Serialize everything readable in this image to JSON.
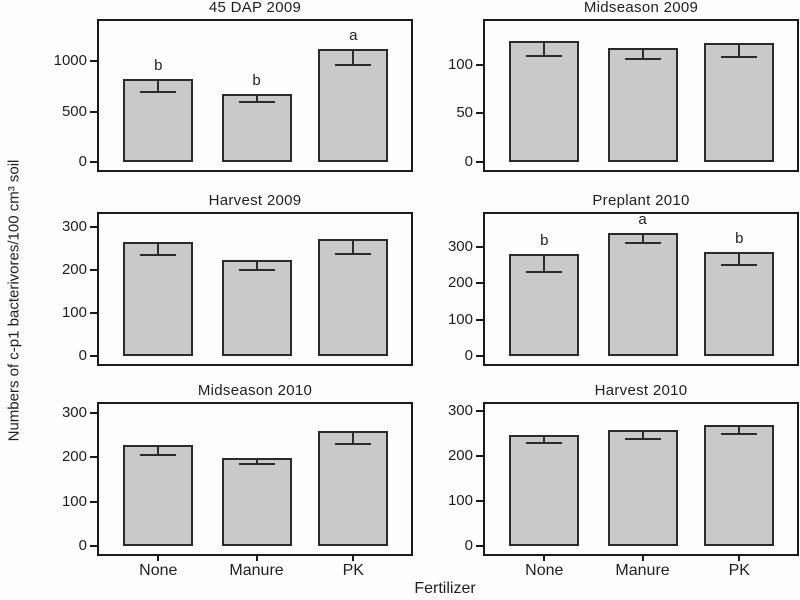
{
  "chart_data": {
    "type": "bar",
    "layout": "grid-2col-3row",
    "xlabel": "Fertilizer",
    "ylabel": "Numbers of c-p1 bacterivores/100 cm³ soil",
    "categories": [
      "None",
      "Manure",
      "PK"
    ],
    "legend": "none",
    "grid": "off",
    "error_bars": "drawn downward from bar top with lower cap",
    "colors": {
      "bar_fill": "#c9c9c9",
      "bar_stroke": "#2b2b2b",
      "panel_stroke": "#1a1a1a",
      "text": "#1f1f1f",
      "background": "#fdfdfd"
    },
    "panels": [
      {
        "title": "45 DAP 2009",
        "ylim": [
          0,
          1400
        ],
        "yticks": [
          0,
          500,
          1000
        ],
        "values": [
          820,
          680,
          1120
        ],
        "errors": [
          130,
          95,
          170
        ],
        "letters": [
          "b",
          "b",
          "a"
        ]
      },
      {
        "title": "Midseason 2009",
        "ylim": [
          0,
          145
        ],
        "yticks": [
          0,
          50,
          100
        ],
        "values": [
          124,
          117,
          122
        ],
        "errors": [
          16,
          12,
          15
        ],
        "letters": null
      },
      {
        "title": "Harvest 2009",
        "ylim": [
          0,
          330
        ],
        "yticks": [
          0,
          100,
          200,
          300
        ],
        "values": [
          264,
          222,
          273
        ],
        "errors": [
          32,
          24,
          39
        ],
        "letters": null
      },
      {
        "title": "Preplant 2010",
        "ylim": [
          0,
          390
        ],
        "yticks": [
          0,
          100,
          200,
          300
        ],
        "values": [
          281,
          337,
          286
        ],
        "errors": [
          53,
          29,
          39
        ],
        "letters": [
          "b",
          "a",
          "b"
        ]
      },
      {
        "title": "Midseason 2010",
        "ylim": [
          0,
          320
        ],
        "yticks": [
          0,
          100,
          200,
          300
        ],
        "values": [
          227,
          198,
          260
        ],
        "errors": [
          24,
          15,
          33
        ],
        "letters": null
      },
      {
        "title": "Harvest 2010",
        "ylim": [
          0,
          315
        ],
        "yticks": [
          0,
          100,
          200,
          300
        ],
        "values": [
          247,
          257,
          269
        ],
        "errors": [
          21,
          22,
          23
        ],
        "letters": null
      }
    ]
  }
}
